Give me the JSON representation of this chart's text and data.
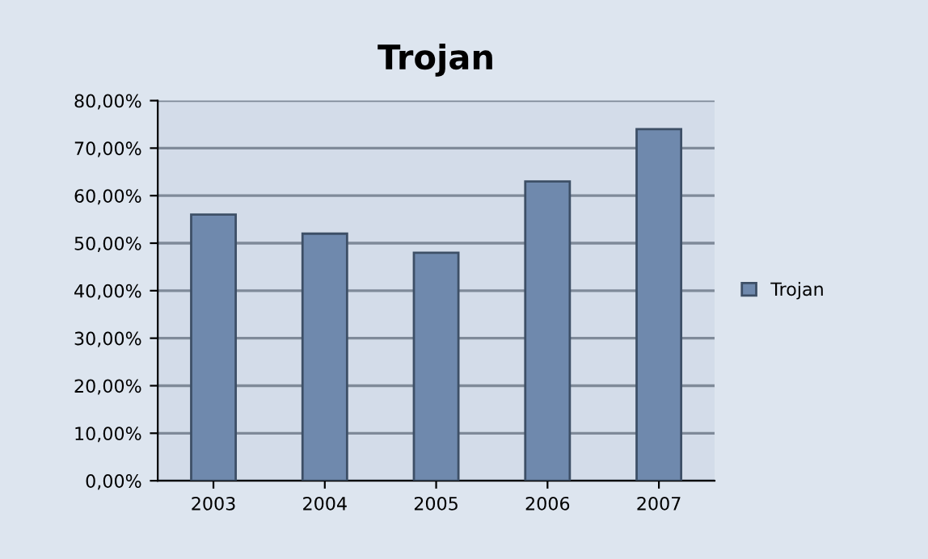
{
  "chart_data": {
    "type": "bar",
    "title": "Trojan",
    "categories": [
      "2003",
      "2004",
      "2005",
      "2006",
      "2007"
    ],
    "series": [
      {
        "name": "Trojan",
        "color": "#6f89ad",
        "values": [
          56,
          52,
          48,
          63,
          74
        ]
      }
    ],
    "ylim": [
      0,
      80
    ],
    "yticks": [
      {
        "value": 0,
        "label": "0,00%"
      },
      {
        "value": 10,
        "label": "10,00%"
      },
      {
        "value": 20,
        "label": "20,00%"
      },
      {
        "value": 30,
        "label": "30,00%"
      },
      {
        "value": 40,
        "label": "40,00%"
      },
      {
        "value": 50,
        "label": "50,00%"
      },
      {
        "value": 60,
        "label": "60,00%"
      },
      {
        "value": 70,
        "label": "70,00%"
      },
      {
        "value": 80,
        "label": "80,00%"
      }
    ],
    "grid": "y",
    "legend": "right"
  }
}
